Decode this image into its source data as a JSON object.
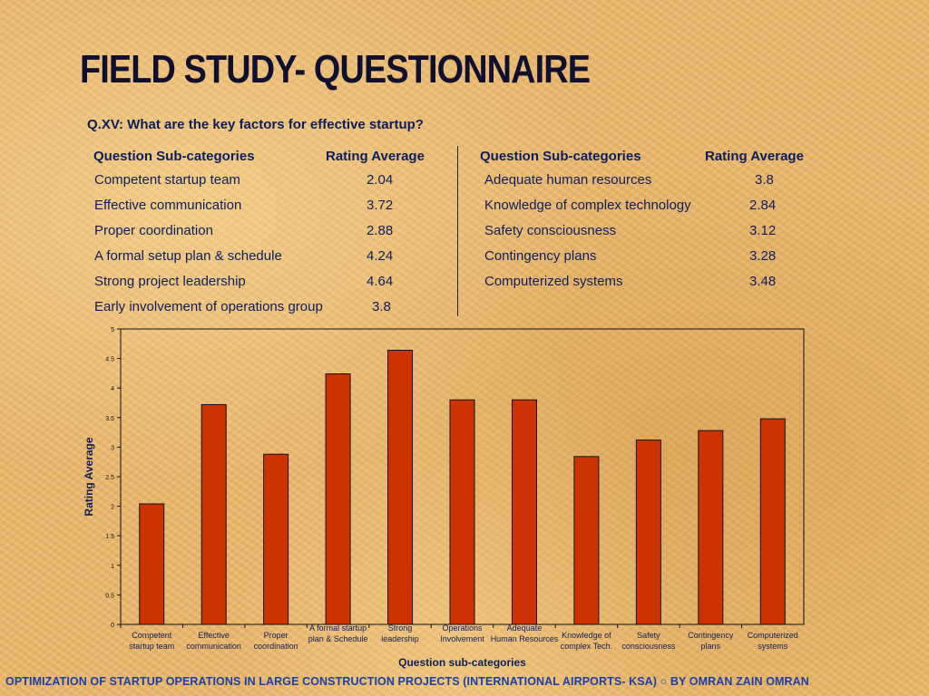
{
  "slide": {
    "title": "FIELD STUDY- QUESTIONNAIRE",
    "question": "Q.XV: What are the key factors for effective startup?",
    "footer": "OPTIMIZATION OF STARTUP OPERATIONS IN LARGE CONSTRUCTION  PROJECTS (INTERNATIONAL AIRPORTS- KSA) ○ BY OMRAN ZAIN OMRAN"
  },
  "table": {
    "left": {
      "header_category": "Question Sub-categories",
      "header_rating": "Rating Average",
      "rows": [
        {
          "category": "Competent startup team",
          "rating": "2.04"
        },
        {
          "category": "Effective communication",
          "rating": "3.72"
        },
        {
          "category": "Proper coordination",
          "rating": "2.88"
        },
        {
          "category": "A formal setup plan & schedule",
          "rating": "4.24"
        },
        {
          "category": "Strong project leadership",
          "rating": "4.64"
        },
        {
          "category": "Early involvement of operations group",
          "rating": "3.8"
        }
      ]
    },
    "right": {
      "header_category": "Question Sub-categories",
      "header_rating": "Rating Average",
      "rows": [
        {
          "category": "Adequate human resources",
          "rating": "3.8"
        },
        {
          "category": "Knowledge of complex technology",
          "rating": "2.84"
        },
        {
          "category": "Safety consciousness",
          "rating": "3.12"
        },
        {
          "category": "Contingency plans",
          "rating": "3.28"
        },
        {
          "category": "Computerized systems",
          "rating": "3.48"
        }
      ]
    }
  },
  "colors": {
    "bar": "#cc3300",
    "text": "#0d1d5c",
    "footer": "#1a3fa6"
  },
  "chart_data": {
    "type": "bar",
    "categories": [
      [
        "Competent",
        "startup team"
      ],
      [
        "Effective",
        "communication"
      ],
      [
        "Proper",
        "coordination"
      ],
      [
        "A formal startup",
        "plan & Schedule"
      ],
      [
        "Strong",
        "leadership"
      ],
      [
        "Operations",
        "Involvement"
      ],
      [
        "Adequate",
        "Human Resources"
      ],
      [
        "Knowledge of",
        "complex Tech."
      ],
      [
        "Safety",
        "consciousness"
      ],
      [
        "Contingency",
        "plans"
      ],
      [
        "Computerized",
        "systems"
      ]
    ],
    "values": [
      2.04,
      3.72,
      2.88,
      4.24,
      4.64,
      3.8,
      3.8,
      2.84,
      3.12,
      3.28,
      3.48
    ],
    "xlabel": "Question sub-categories",
    "ylabel": "Rating Average",
    "ylim": [
      0,
      5
    ],
    "yticks": [
      0,
      0.5,
      1,
      1.5,
      2,
      2.5,
      3,
      3.5,
      4,
      4.5,
      5
    ],
    "grid": false,
    "legend": "none"
  }
}
